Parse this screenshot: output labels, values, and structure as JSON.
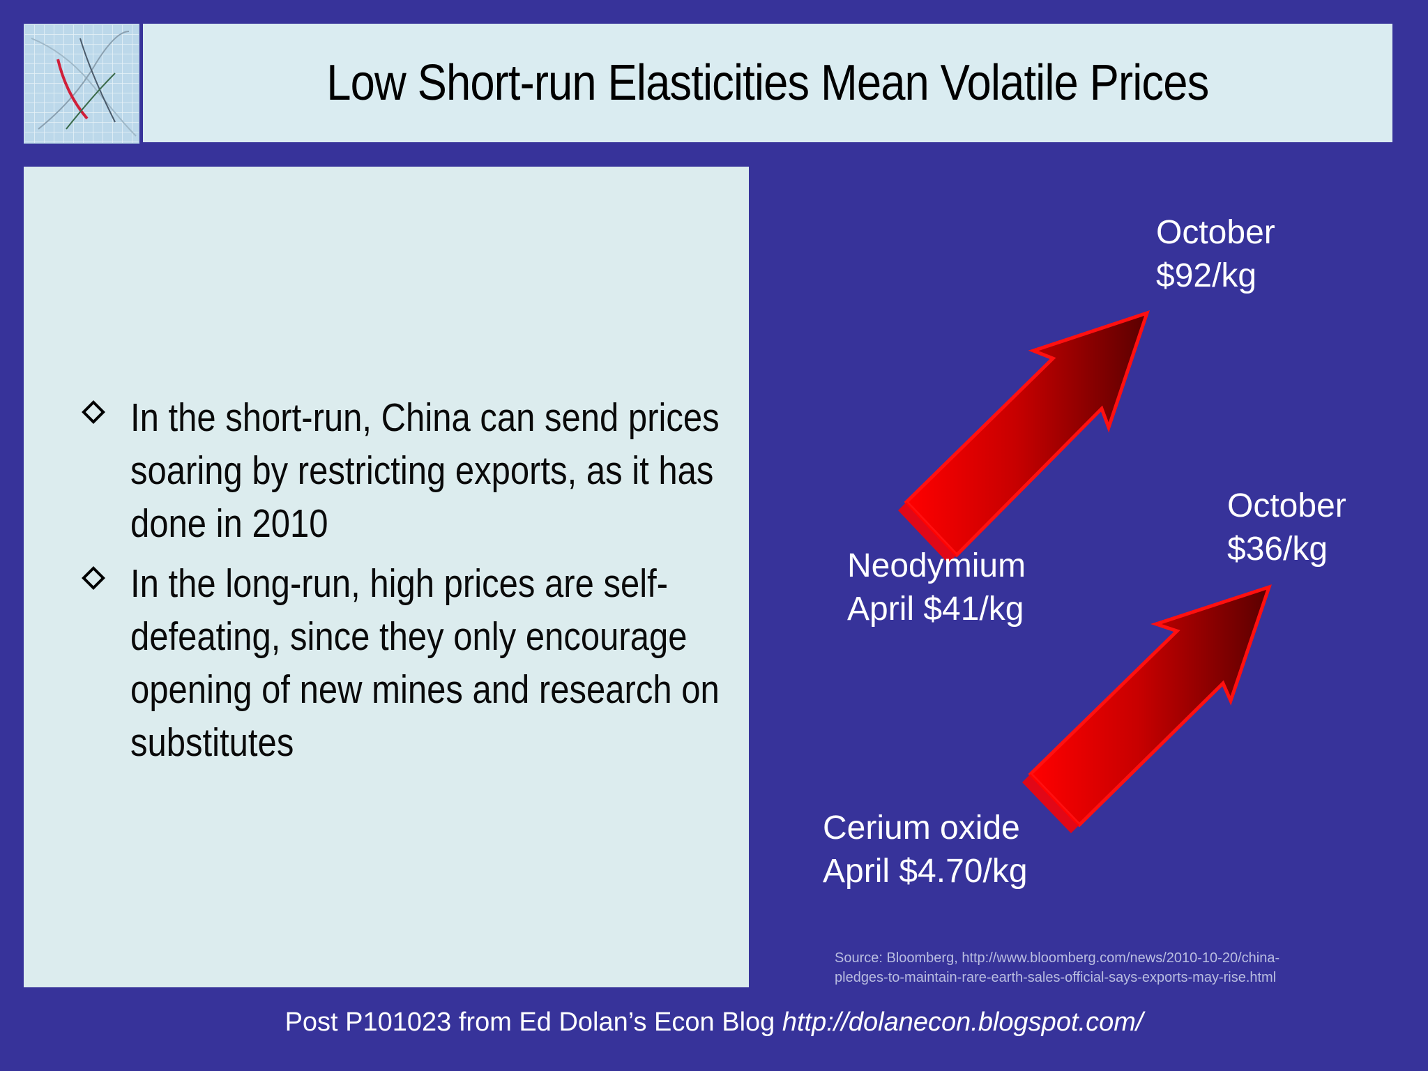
{
  "slide": {
    "title": "Low Short-run Elasticities Mean Volatile Prices"
  },
  "bullets": [
    {
      "text": "In the short-run, China can send prices soaring by restricting exports, as it has done in 2010"
    },
    {
      "text": "In the long-run, high prices are self-defeating, since they only encourage opening of new mines and research on substitutes"
    }
  ],
  "neodymium": {
    "start_name": "Neodymium",
    "start_price": "April $41/kg",
    "end_month": "October",
    "end_price": "$92/kg"
  },
  "cerium": {
    "start_name": "Cerium oxide",
    "start_price": "April $4.70/kg",
    "end_month": "October",
    "end_price": "$36/kg"
  },
  "source": {
    "line1": "Source: Bloomberg, http://www.bloomberg.com/news/2010-10-20/china-",
    "line2": "pledges-to-maintain-rare-earth-sales-official-says-exports-may-rise.html"
  },
  "footer": {
    "prefix": "Post P101023 from Ed Dolan’s Econ Blog ",
    "url": "http://dolanecon.blogspot.com/"
  },
  "colors": {
    "background": "#37339a",
    "panel": "#dcecee",
    "arrow_light": "#ff0000",
    "arrow_dark": "#5a0000"
  }
}
